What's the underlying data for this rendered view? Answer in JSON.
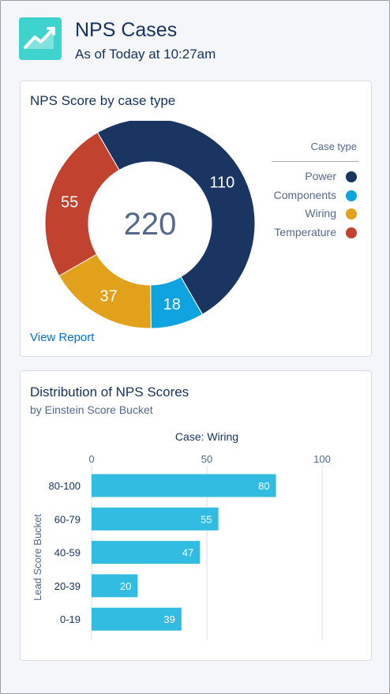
{
  "header": {
    "title": "NPS Cases",
    "subtitle": "As of Today at 10:27am",
    "icon": "line-chart-icon",
    "icon_color": "#3fd3cd"
  },
  "donut_card": {
    "title": "NPS Score by case type",
    "total": "220",
    "legend_title": "Case type",
    "view_report": "View Report"
  },
  "bar_card": {
    "title": "Distribution of NPS Scores",
    "subtitle": "by Einstein Score Bucket"
  },
  "chart_data": [
    {
      "type": "pie",
      "title": "NPS Score by case type",
      "legend_title": "Case type",
      "center_label": "220",
      "categories": [
        "Power",
        "Components",
        "Wiring",
        "Temperature"
      ],
      "values": [
        110,
        18,
        37,
        55
      ],
      "colors": [
        "#1b3563",
        "#0fa3e0",
        "#e2a11b",
        "#c1432f"
      ],
      "legend_position": "right"
    },
    {
      "type": "bar",
      "orientation": "horizontal",
      "title": "Distribution of NPS Scores",
      "subtitle": "by Einstein Score Bucket",
      "series_name": "Case: Wiring",
      "ylabel": "Lead Score Bucket",
      "categories": [
        "80-100",
        "60-79",
        "40-59",
        "20-39",
        "0-19"
      ],
      "values": [
        80,
        55,
        47,
        20,
        39
      ],
      "xlim": [
        0,
        100
      ],
      "xticks": [
        0,
        50,
        100
      ],
      "color": "#33bce2",
      "grid": true
    }
  ]
}
